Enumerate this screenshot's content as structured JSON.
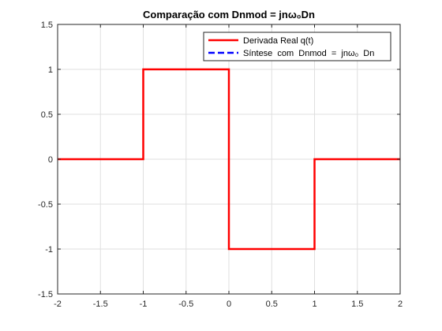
{
  "chart_data": {
    "type": "line",
    "title": "Comparação com Dnmod = jnω₀Dn",
    "xlabel": "",
    "ylabel": "",
    "xlim": [
      -2,
      2
    ],
    "ylim": [
      -1.5,
      1.5
    ],
    "grid": true,
    "legend_position": "top-right",
    "x_ticks": [
      -2,
      -1.5,
      -1,
      -0.5,
      0,
      0.5,
      1,
      1.5,
      2
    ],
    "x_tick_labels": [
      "-2",
      "-1.5",
      "-1",
      "-0.5",
      "0",
      "0.5",
      "1",
      "1.5",
      "2"
    ],
    "y_ticks": [
      -1.5,
      -1,
      -0.5,
      0,
      0.5,
      1,
      1.5
    ],
    "y_tick_labels": [
      "-1.5",
      "-1",
      "-0.5",
      "0",
      "0.5",
      "1",
      "1.5"
    ],
    "series": [
      {
        "name": "Derivada Real q(t)",
        "color": "#ff0000",
        "style": "solid",
        "x": [
          -2,
          -1,
          -1,
          0,
          0,
          1,
          1,
          2
        ],
        "y": [
          0,
          0,
          1,
          1,
          -1,
          -1,
          0,
          0
        ]
      },
      {
        "name": "Síntese  com  Dnmod  =  jnω₀  Dn",
        "color": "#0000ff",
        "style": "dashed",
        "x": [],
        "y": []
      }
    ]
  }
}
